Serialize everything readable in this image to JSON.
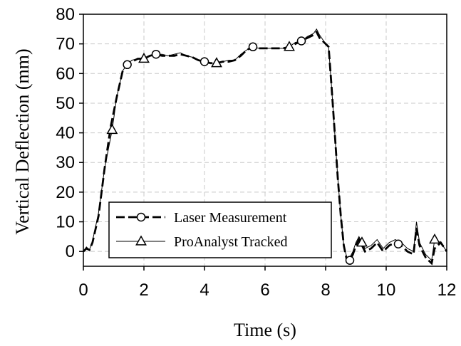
{
  "chart_data": {
    "type": "line",
    "xlabel": "Time (s)",
    "ylabel": "Vertical Deflection (mm)",
    "xlim": [
      0,
      12
    ],
    "ylim": [
      -5,
      80
    ],
    "xticks": [
      "0",
      "2",
      "4",
      "6",
      "8",
      "10",
      "12"
    ],
    "yticks": [
      "0",
      "10",
      "20",
      "30",
      "40",
      "50",
      "60",
      "70",
      "80"
    ],
    "grid": "major gridlines, dashed",
    "legend_position": "lower-left",
    "series": [
      {
        "name": "Laser Measurement",
        "style": "dashed-with-circle-markers",
        "x": [
          0,
          0.1,
          0.2,
          0.3,
          0.5,
          0.7,
          0.9,
          1.1,
          1.3,
          1.45,
          1.6,
          1.8,
          2.0,
          2.2,
          2.4,
          2.6,
          2.8,
          3.0,
          3.2,
          3.4,
          3.6,
          3.8,
          4.0,
          4.2,
          4.4,
          4.6,
          4.8,
          5.0,
          5.2,
          5.4,
          5.6,
          5.8,
          6.0,
          6.2,
          6.4,
          6.6,
          6.8,
          7.0,
          7.2,
          7.4,
          7.6,
          7.7,
          7.8,
          7.9,
          8.0,
          8.1,
          8.2,
          8.3,
          8.4,
          8.5,
          8.6,
          8.7,
          8.8,
          8.9,
          9.0,
          9.1,
          9.2,
          9.3,
          9.5,
          9.7,
          9.9,
          10.1,
          10.3,
          10.5,
          10.7,
          10.9,
          11.0,
          11.1,
          11.2,
          11.3,
          11.4,
          11.5,
          11.6,
          11.8,
          12.0
        ],
        "y": [
          0,
          1,
          0.5,
          3,
          12,
          28,
          42,
          52,
          61,
          63,
          64,
          65,
          65,
          66,
          66.5,
          66,
          66,
          66,
          66.5,
          66,
          65.5,
          64.5,
          64,
          63.5,
          63.5,
          64,
          64,
          64.5,
          66,
          68,
          69,
          68.5,
          68.5,
          68.5,
          68.5,
          68.5,
          69,
          70,
          71,
          72,
          73,
          74,
          72,
          71,
          70,
          69,
          55,
          40,
          25,
          12,
          2,
          -3,
          -3,
          -1,
          2,
          4,
          2,
          0,
          1,
          3,
          0,
          2,
          3,
          2,
          0,
          -1,
          8,
          2,
          0,
          -2,
          -3,
          -4,
          1,
          3,
          0
        ],
        "marker_x": [
          1.45,
          2.4,
          4.0,
          5.6,
          7.2,
          8.8,
          10.4
        ]
      },
      {
        "name": "ProAnalyst Tracked",
        "style": "solid-thin-with-triangle-markers",
        "x": [
          0,
          0.1,
          0.2,
          0.3,
          0.5,
          0.7,
          0.95,
          1.1,
          1.3,
          1.45,
          1.6,
          1.8,
          2.0,
          2.2,
          2.4,
          2.6,
          2.8,
          3.0,
          3.2,
          3.4,
          3.6,
          3.8,
          4.0,
          4.2,
          4.4,
          4.6,
          4.8,
          5.0,
          5.2,
          5.4,
          5.6,
          5.8,
          6.0,
          6.2,
          6.4,
          6.6,
          6.8,
          7.0,
          7.2,
          7.4,
          7.6,
          7.7,
          7.8,
          7.9,
          8.0,
          8.1,
          8.2,
          8.3,
          8.4,
          8.5,
          8.6,
          8.7,
          8.8,
          8.9,
          9.0,
          9.1,
          9.2,
          9.3,
          9.5,
          9.7,
          9.9,
          10.1,
          10.3,
          10.5,
          10.7,
          10.9,
          11.0,
          11.1,
          11.2,
          11.3,
          11.4,
          11.5,
          11.6,
          11.8,
          12.0
        ],
        "y": [
          0,
          1.5,
          0.5,
          3.5,
          13,
          28,
          41,
          52,
          61,
          63,
          64.5,
          65,
          65,
          66,
          66.5,
          66.5,
          66,
          66.5,
          67,
          66,
          65.5,
          64.5,
          64,
          63.5,
          63.5,
          64,
          64.5,
          64.5,
          66.5,
          68,
          69,
          68.5,
          68.5,
          68.5,
          68.5,
          68.5,
          69,
          70.5,
          71,
          72.5,
          73.5,
          75,
          73,
          71.5,
          70,
          69,
          55,
          40,
          25,
          12,
          2,
          -2,
          -2,
          0,
          3,
          5,
          3,
          1,
          2,
          4,
          1,
          3,
          4,
          3,
          1,
          0,
          10,
          3,
          1,
          -1,
          -2,
          -3,
          4,
          3,
          0
        ],
        "marker_x": [
          0.95,
          2.0,
          4.4,
          6.8,
          9.2,
          11.6
        ]
      }
    ]
  }
}
